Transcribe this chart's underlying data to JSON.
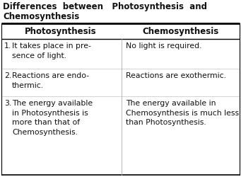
{
  "title_line1": "Differences  between   Photosynthesis  and",
  "title_line2": "Chemosynthesis",
  "col1_header": "Photosynthesis",
  "col2_header": "Chemosynthesis",
  "rows": [
    {
      "num": "1.",
      "col1": "It takes place in pre-\nsence of light.",
      "col2": "No light is required."
    },
    {
      "num": "2.",
      "col1": "Reactions are endo-\nthermic.",
      "col2": "Reactions are exothermic."
    },
    {
      "num": "3.",
      "col1": "The energy available\nin Photosynthesis is\nmore than that of\nChemosynthesis.",
      "col2": "The energy available in\nChemosynthesis is much less\nthan Photosynthesis."
    }
  ],
  "text_color": "#111111",
  "title_fontsize": 8.5,
  "header_fontsize": 8.5,
  "body_fontsize": 7.8,
  "fig_width": 3.41,
  "fig_height": 2.51,
  "dpi": 100
}
